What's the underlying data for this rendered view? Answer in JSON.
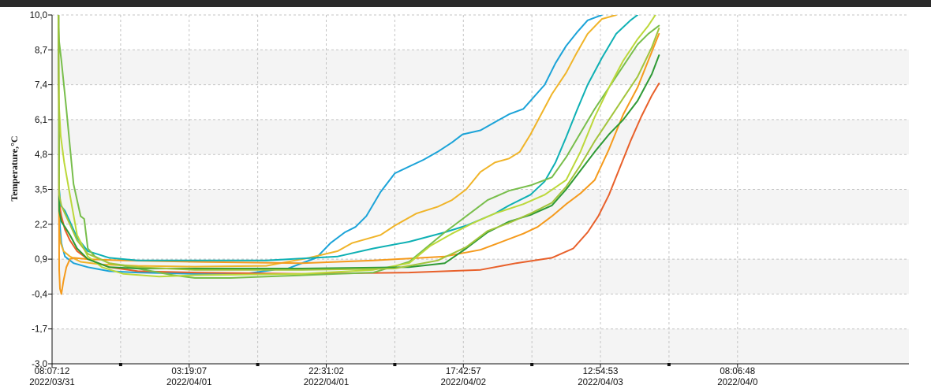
{
  "chart_data": {
    "type": "line",
    "ylabel": "Temperature,°C",
    "xlabel": "",
    "ylim": [
      -3.0,
      10.0
    ],
    "yticks": [
      "10,0",
      "8,7",
      "7,4",
      "6,1",
      "4,8",
      "3,5",
      "2,2",
      "0,9",
      "-0,4",
      "-1,7",
      "-3,0"
    ],
    "xlim": [
      0,
      120
    ],
    "xticks": [
      {
        "x": 0,
        "time": "08:07:12",
        "date": "2022/03/31"
      },
      {
        "x": 19.2,
        "time": "03:19:07",
        "date": "2022/04/01"
      },
      {
        "x": 38.4,
        "time": "22:31:02",
        "date": "2022/04/01"
      },
      {
        "x": 57.6,
        "time": "17:42:57",
        "date": "2022/04/02"
      },
      {
        "x": 76.8,
        "time": "12:54:53",
        "date": "2022/04/03"
      },
      {
        "x": 96.0,
        "time": "08:06:48",
        "date": "2022/04/0"
      }
    ],
    "minor_xticks": [
      9.6,
      28.8,
      48.0,
      67.2,
      86.4
    ],
    "grid": true,
    "series": [
      {
        "color": "#1ba3d8",
        "x": [
          0.9,
          1.0,
          1.3,
          1.8,
          3,
          5,
          8,
          12,
          20,
          27,
          31,
          33,
          37,
          39,
          41,
          42.5,
          44,
          46,
          48,
          50,
          52,
          54,
          56,
          57.5,
          60,
          62,
          64,
          66,
          67.5,
          69,
          70.5,
          72,
          73.5,
          75,
          77
        ],
        "y": [
          10,
          2.5,
          1.5,
          1.0,
          0.75,
          0.6,
          0.45,
          0.4,
          0.35,
          0.35,
          0.5,
          0.55,
          0.95,
          1.5,
          1.9,
          2.1,
          2.5,
          3.4,
          4.1,
          4.35,
          4.6,
          4.9,
          5.25,
          5.55,
          5.7,
          6.0,
          6.3,
          6.5,
          6.95,
          7.4,
          8.2,
          8.85,
          9.35,
          9.8,
          10.0
        ]
      },
      {
        "color": "#f0b428",
        "x": [
          0.9,
          1.0,
          1.2,
          1.6,
          2.5,
          4,
          7,
          12,
          20,
          30,
          34,
          36,
          40,
          42,
          46,
          48,
          51,
          54,
          56,
          58,
          60,
          62,
          64,
          65.5,
          67,
          68.5,
          70,
          72,
          73.5,
          75,
          77,
          79
        ],
        "y": [
          10,
          2.0,
          1.5,
          1.2,
          1.0,
          0.8,
          0.7,
          0.65,
          0.62,
          0.65,
          0.85,
          0.95,
          1.2,
          1.5,
          1.8,
          2.15,
          2.6,
          2.85,
          3.1,
          3.5,
          4.15,
          4.5,
          4.65,
          4.9,
          5.55,
          6.3,
          7.05,
          7.85,
          8.6,
          9.3,
          9.85,
          10.0
        ]
      },
      {
        "color": "#f59a1c",
        "x": [
          0.9,
          1.0,
          1.1,
          1.3,
          1.6,
          2.0,
          2.5,
          3,
          5,
          10,
          20,
          35,
          45,
          55,
          60,
          63,
          66,
          68,
          70,
          72,
          74,
          76,
          78,
          80,
          82,
          83.5,
          85
        ],
        "y": [
          10,
          0.5,
          -0.2,
          -0.4,
          0.1,
          0.6,
          0.9,
          0.95,
          0.9,
          0.85,
          0.8,
          0.75,
          0.85,
          1.0,
          1.25,
          1.55,
          1.85,
          2.1,
          2.5,
          2.95,
          3.35,
          3.85,
          5.0,
          6.3,
          7.3,
          8.3,
          9.3
        ]
      },
      {
        "color": "#e8602a",
        "x": [
          0.9,
          1.0,
          1.3,
          1.8,
          2.5,
          3.5,
          5,
          8,
          12,
          20,
          35,
          50,
          60,
          65,
          70,
          73,
          75,
          76.5,
          78,
          79.5,
          81,
          82.5,
          84,
          85
        ],
        "y": [
          10,
          3.0,
          2.5,
          2.0,
          1.6,
          1.2,
          0.9,
          0.6,
          0.45,
          0.4,
          0.35,
          0.4,
          0.5,
          0.75,
          0.95,
          1.3,
          1.9,
          2.5,
          3.3,
          4.3,
          5.3,
          6.2,
          7.0,
          7.45
        ]
      },
      {
        "color": "#0eb0b4",
        "x": [
          0.9,
          1.0,
          1.2,
          1.8,
          2.5,
          3.5,
          5,
          8,
          12,
          20,
          30,
          40,
          45,
          50,
          55,
          58,
          62,
          64,
          67,
          69,
          70.5,
          72,
          73.5,
          75,
          77,
          79,
          81,
          82
        ],
        "y": [
          10,
          3.5,
          2.9,
          2.7,
          2.3,
          1.7,
          1.2,
          0.95,
          0.85,
          0.85,
          0.85,
          1.0,
          1.3,
          1.55,
          1.9,
          2.15,
          2.6,
          2.9,
          3.3,
          3.8,
          4.5,
          5.45,
          6.45,
          7.4,
          8.4,
          9.3,
          9.8,
          10.0
        ]
      },
      {
        "color": "#78be4b",
        "x": [
          0.9,
          1.0,
          1.3,
          2.0,
          3,
          4,
          4.5,
          5,
          6,
          8,
          12,
          17,
          20,
          25,
          30,
          40,
          45,
          50,
          55,
          58,
          61,
          64,
          67,
          70,
          72,
          74,
          76,
          78,
          80,
          82,
          83.5,
          85
        ],
        "y": [
          10,
          9.0,
          8.3,
          6.5,
          3.7,
          2.5,
          2.4,
          1.3,
          1.0,
          0.75,
          0.55,
          0.3,
          0.2,
          0.2,
          0.25,
          0.35,
          0.4,
          0.8,
          1.9,
          2.5,
          3.1,
          3.45,
          3.65,
          3.95,
          4.7,
          5.6,
          6.5,
          7.3,
          8.1,
          8.9,
          9.3,
          9.6
        ]
      },
      {
        "color": "#bcd83a",
        "x": [
          0.9,
          1.0,
          1.2,
          1.7,
          2.5,
          3.5,
          5,
          7,
          10,
          15,
          20,
          35,
          45,
          50,
          53,
          56,
          59,
          62,
          66,
          69,
          72,
          74,
          76,
          78,
          80,
          82,
          83.5,
          84.5
        ],
        "y": [
          10,
          6.5,
          5.5,
          4.5,
          3.3,
          1.8,
          1.0,
          0.6,
          0.35,
          0.25,
          0.3,
          0.35,
          0.5,
          0.75,
          1.4,
          1.85,
          2.25,
          2.6,
          2.95,
          3.3,
          3.85,
          4.9,
          6.2,
          7.3,
          8.3,
          9.1,
          9.6,
          10.0
        ]
      },
      {
        "color": "#2e9a35",
        "x": [
          0.9,
          1.0,
          1.3,
          1.8,
          2.5,
          3.5,
          5,
          8,
          12,
          20,
          35,
          50,
          55,
          58,
          61,
          64,
          67,
          70,
          72,
          74,
          76,
          78,
          80,
          82,
          84,
          85
        ],
        "y": [
          10,
          2.7,
          2.3,
          2.1,
          1.8,
          1.3,
          0.9,
          0.6,
          0.55,
          0.55,
          0.55,
          0.6,
          0.75,
          1.3,
          1.9,
          2.3,
          2.55,
          2.9,
          3.5,
          4.2,
          4.9,
          5.55,
          6.1,
          6.8,
          7.8,
          8.5
        ]
      },
      {
        "color": "#a2c43c",
        "x": [
          0.9,
          1.0,
          1.3,
          1.8,
          2.5,
          3.5,
          5,
          8,
          12,
          20,
          35,
          48,
          54,
          58,
          61,
          64,
          67,
          70,
          72,
          74,
          76,
          78,
          80,
          82,
          84,
          85
        ],
        "y": [
          10,
          3.3,
          2.9,
          2.6,
          2.2,
          1.6,
          1.1,
          0.75,
          0.6,
          0.5,
          0.5,
          0.55,
          0.85,
          1.35,
          1.95,
          2.25,
          2.6,
          3.0,
          3.6,
          4.4,
          5.3,
          6.1,
          6.9,
          7.7,
          8.8,
          9.5
        ]
      }
    ]
  }
}
